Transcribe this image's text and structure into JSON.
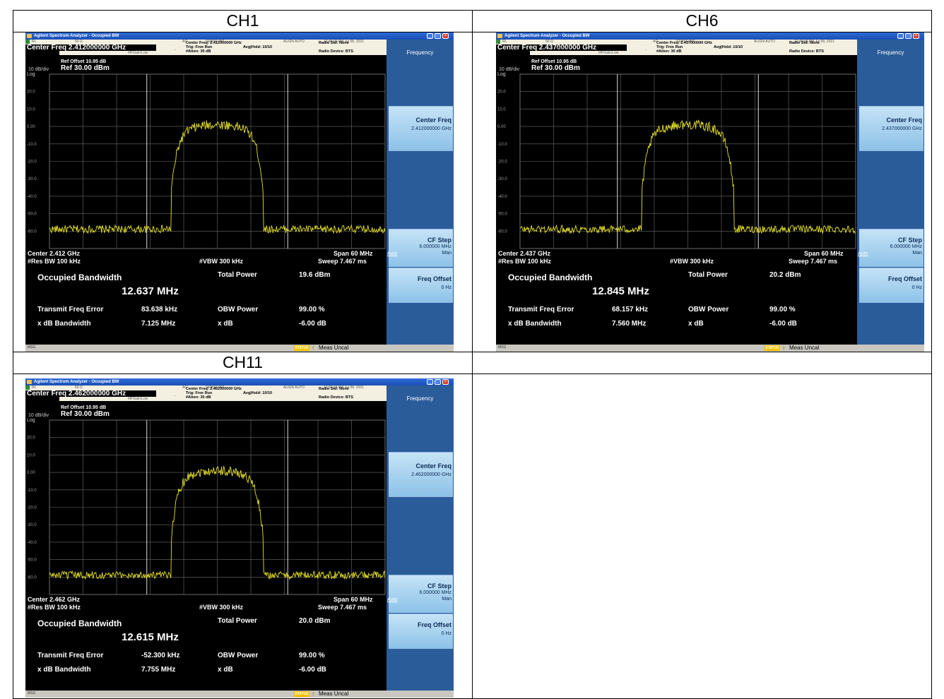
{
  "table": {
    "headers": [
      "CH1",
      "CH6",
      "CH11"
    ]
  },
  "app": {
    "title": "Agilent Spectrum Analyzer - Occupied BW",
    "rl": "RL",
    "impedance": "50 Ω",
    "ac": "AC",
    "sense": "SENSE:INT",
    "align": "ALIGN AUTO",
    "input": "Input: RF",
    "ifgain": "#IFGain:Low",
    "trig": "Trig: Free Run",
    "avghold": "Avg|Hold: 10/10",
    "atten": "#Atten: 30 dB",
    "radio_std": "Radio Std: None",
    "radio_dev": "Radio Device: BTS",
    "ref_offset": "Ref Offset 10.95 dB",
    "ref_level": "Ref 30.00 dBm",
    "div": "10 dB/div",
    "log": "Log",
    "y_ticks": [
      "20.0",
      "10.0",
      "0.00",
      "-10.0",
      "-20.0",
      "-30.0",
      "-40.0",
      "-50.0",
      "-60.0"
    ],
    "res_bw": "#Res BW  100 kHz",
    "vbw": "#VBW  300 kHz",
    "span": "Span 60 MHz",
    "sweep": "Sweep  7.467 ms",
    "occ_bw_label": "Occupied Bandwidth",
    "total_power_label": "Total Power",
    "tfe_label": "Transmit Freq Error",
    "obw_power_label": "OBW Power",
    "xdb_bw_label": "x dB Bandwidth",
    "xdb_label": "x dB",
    "obw_power": "99.00 %",
    "xdb": "-6.00 dB",
    "side_title": "Frequency",
    "center_freq_label": "Center Freq",
    "cf_step_label": "CF Step",
    "cf_step_value": "6.000000 MHz",
    "auto": "Auto",
    "man": "Man",
    "freq_offset_label": "Freq Offset",
    "freq_offset_value": "0 Hz",
    "msg": "MSG",
    "status": "STATUS",
    "meas_uncal": "Meas Uncal"
  },
  "screens": [
    {
      "channel": "CH1",
      "timestamp": "12:45:09 PM Jul 08, 2021",
      "center_freq_hdr": "Center Freq  2.412000000 GHz",
      "center_freq_small": "Center Freq: 2.412000000 GHz",
      "center_footer": "Center  2.412 GHz",
      "center_freq_side": "2.412000000 GHz",
      "occ_bw": "12.637 MHz",
      "total_power": "19.6 dBm",
      "tfe": "83.638 kHz",
      "xdb_bw": "7.125 MHz"
    },
    {
      "channel": "CH6",
      "timestamp": "12:49:06 PM Jul 08, 2021",
      "center_freq_hdr": "Center Freq  2.437000000 GHz",
      "center_freq_small": "Center Freq: 2.437000000 GHz",
      "center_footer": "Center  2.437 GHz",
      "center_freq_side": "2.437000000 GHz",
      "occ_bw": "12.845 MHz",
      "total_power": "20.2 dBm",
      "tfe": "68.157 kHz",
      "xdb_bw": "7.560 MHz"
    },
    {
      "channel": "CH11",
      "timestamp": "12:55:15 PM Jul 08, 2021",
      "center_freq_hdr": "Center Freq  2.462000000 GHz",
      "center_freq_small": "Center Freq: 2.462000000 GHz",
      "center_footer": "Center  2.462 GHz",
      "center_freq_side": "2.462000000 GHz",
      "occ_bw": "12.615 MHz",
      "total_power": "20.0 dBm",
      "tfe": "-52.300 kHz",
      "xdb_bw": "7.755 MHz"
    }
  ],
  "colors": {
    "trace": "#e6e22a",
    "grid": "#6b6b6b",
    "softkey": "#4f86c0",
    "softkey_highlight": "#9fd0ef"
  }
}
